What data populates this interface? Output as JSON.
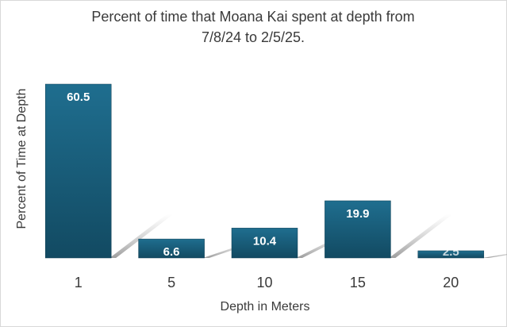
{
  "chart_data": {
    "type": "bar",
    "title": "Percent of time that Moana Kai spent at depth from 7/8/24 to 2/5/25.",
    "title_lines": [
      "Percent of time that Moana Kai spent at depth from",
      "7/8/24 to 2/5/25."
    ],
    "xlabel": "Depth in Meters",
    "ylabel": "Percent of Time at Depth",
    "categories": [
      "1",
      "5",
      "10",
      "15",
      "20"
    ],
    "values": [
      60.5,
      6.6,
      10.4,
      19.9,
      2.5
    ],
    "data_labels": [
      "60.5",
      "6.6",
      "10.4",
      "19.9",
      "2.5"
    ],
    "ylim": [
      0,
      60.5
    ],
    "grid": false,
    "legend": "none",
    "colors": {
      "bar_top": "#1f6e8f",
      "bar_bottom": "#124a62",
      "bar_edge": "#0e3d52",
      "shadow": "#9a9a9a",
      "text": "#3a3a3a",
      "data_label": "#ffffff"
    }
  }
}
